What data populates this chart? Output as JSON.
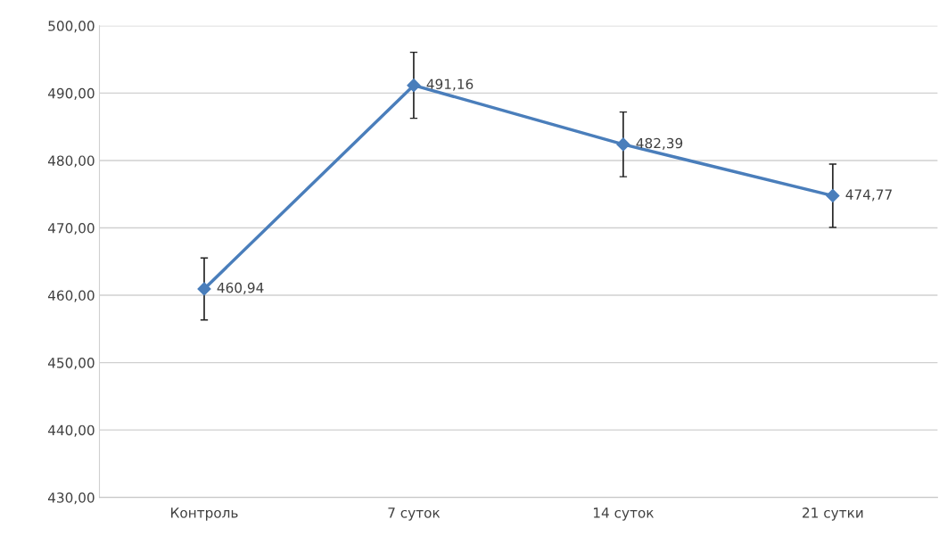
{
  "chart_data": {
    "type": "line",
    "categories": [
      "Контроль",
      "7 суток",
      "14 суток",
      "21 сутки"
    ],
    "series": [
      {
        "color": "#4a7ebb",
        "values": [
          460.94,
          491.16,
          482.39,
          474.77
        ],
        "errors": [
          4.6,
          4.9,
          4.8,
          4.7
        ],
        "value_labels": [
          "460,94",
          "491,16",
          "482,39",
          "474,77"
        ]
      }
    ],
    "ylim": [
      430,
      500
    ],
    "yticks": [
      {
        "value": 430,
        "label": "430,00"
      },
      {
        "value": 440,
        "label": "440,00"
      },
      {
        "value": 450,
        "label": "450,00"
      },
      {
        "value": 460,
        "label": "460,00"
      },
      {
        "value": 470,
        "label": "470,00"
      },
      {
        "value": 480,
        "label": "480,00"
      },
      {
        "value": 490,
        "label": "490,00"
      },
      {
        "value": 500,
        "label": "500,00"
      }
    ],
    "grid": "y",
    "marker": "diamond",
    "line_style": "solid",
    "legend": false
  }
}
